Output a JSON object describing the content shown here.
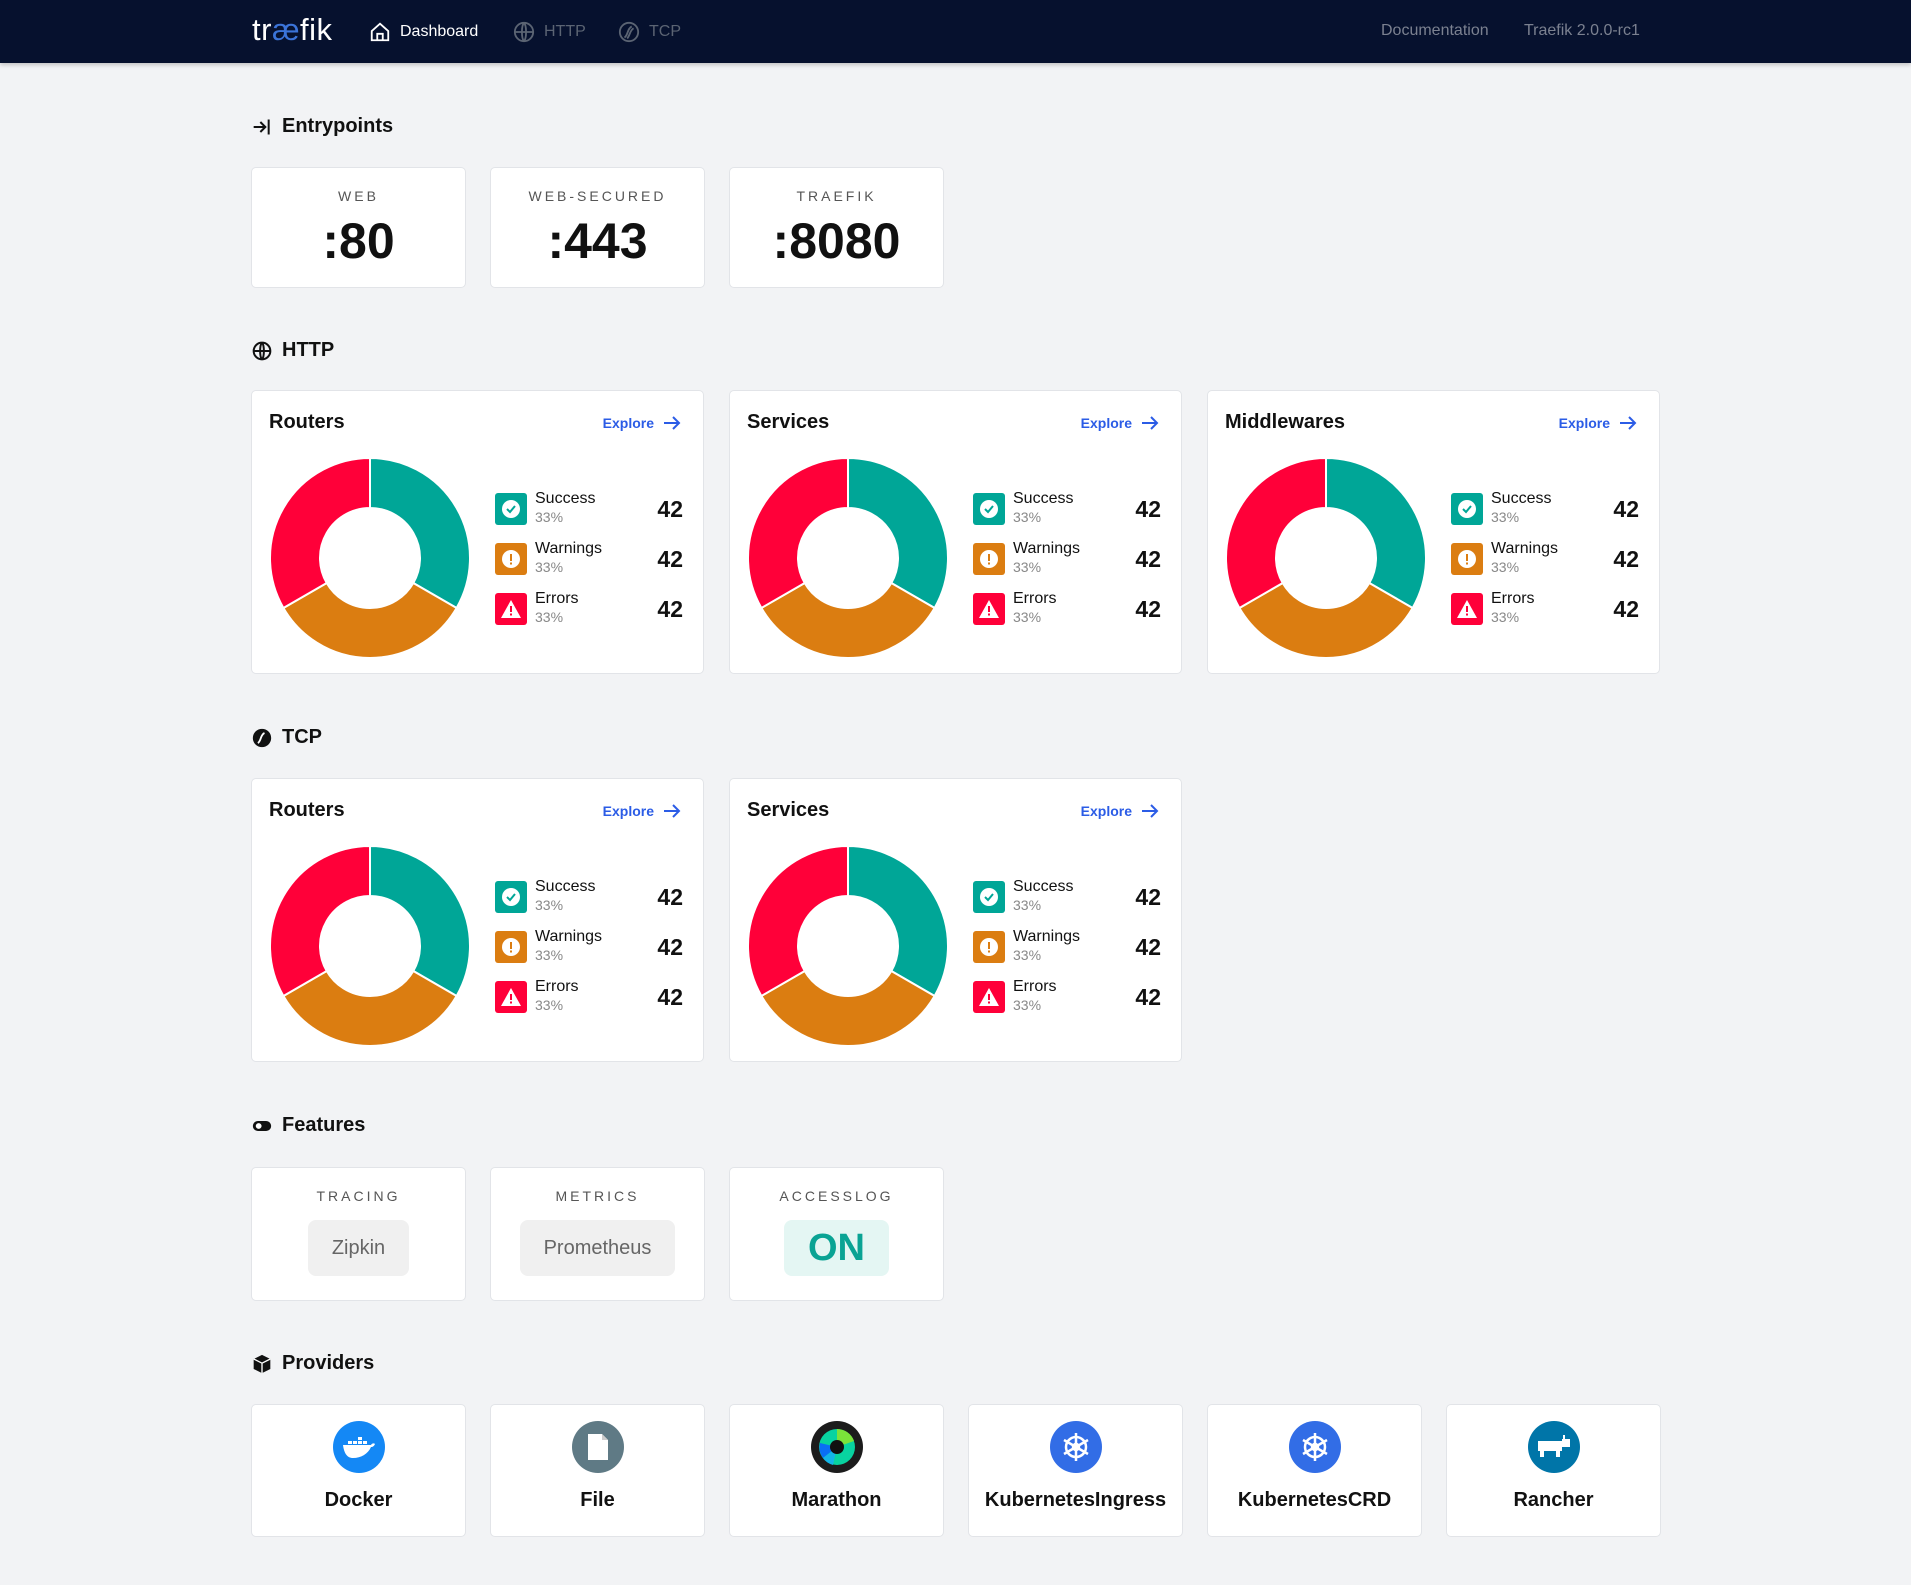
{
  "header": {
    "logo": "træfik",
    "logo_parts": [
      "tr",
      "æ",
      "fik"
    ],
    "nav": [
      {
        "label": "Dashboard",
        "icon": "home-icon",
        "active": true
      },
      {
        "label": "HTTP",
        "icon": "globe-icon",
        "active": false
      },
      {
        "label": "TCP",
        "icon": "tcp-icon",
        "active": false
      }
    ],
    "documentation": "Documentation",
    "version": "Traefik 2.0.0-rc1"
  },
  "entrypoints": {
    "title": "Entrypoints",
    "items": [
      {
        "name": "WEB",
        "port": ":80"
      },
      {
        "name": "WEB-SECURED",
        "port": ":443"
      },
      {
        "name": "TRAEFIK",
        "port": ":8080"
      }
    ]
  },
  "colors": {
    "success": "#00a697",
    "warnings": "#db7d11",
    "errors": "#ff0039",
    "link": "#2b5ce6",
    "header_bg": "#06112e"
  },
  "http": {
    "title": "HTTP",
    "cards": [
      {
        "title": "Routers",
        "explore": "Explore",
        "stats": [
          {
            "label": "Success",
            "pct": "33%",
            "value": "42"
          },
          {
            "label": "Warnings",
            "pct": "33%",
            "value": "42"
          },
          {
            "label": "Errors",
            "pct": "33%",
            "value": "42"
          }
        ]
      },
      {
        "title": "Services",
        "explore": "Explore",
        "stats": [
          {
            "label": "Success",
            "pct": "33%",
            "value": "42"
          },
          {
            "label": "Warnings",
            "pct": "33%",
            "value": "42"
          },
          {
            "label": "Errors",
            "pct": "33%",
            "value": "42"
          }
        ]
      },
      {
        "title": "Middlewares",
        "explore": "Explore",
        "stats": [
          {
            "label": "Success",
            "pct": "33%",
            "value": "42"
          },
          {
            "label": "Warnings",
            "pct": "33%",
            "value": "42"
          },
          {
            "label": "Errors",
            "pct": "33%",
            "value": "42"
          }
        ]
      }
    ]
  },
  "tcp": {
    "title": "TCP",
    "cards": [
      {
        "title": "Routers",
        "explore": "Explore",
        "stats": [
          {
            "label": "Success",
            "pct": "33%",
            "value": "42"
          },
          {
            "label": "Warnings",
            "pct": "33%",
            "value": "42"
          },
          {
            "label": "Errors",
            "pct": "33%",
            "value": "42"
          }
        ]
      },
      {
        "title": "Services",
        "explore": "Explore",
        "stats": [
          {
            "label": "Success",
            "pct": "33%",
            "value": "42"
          },
          {
            "label": "Warnings",
            "pct": "33%",
            "value": "42"
          },
          {
            "label": "Errors",
            "pct": "33%",
            "value": "42"
          }
        ]
      }
    ]
  },
  "features": {
    "title": "Features",
    "items": [
      {
        "name": "TRACING",
        "value": "Zipkin"
      },
      {
        "name": "METRICS",
        "value": "Prometheus"
      },
      {
        "name": "ACCESSLOG",
        "value": "ON"
      }
    ]
  },
  "providers": {
    "title": "Providers",
    "items": [
      {
        "name": "Docker",
        "icon": "docker-icon",
        "color": "#1488f5"
      },
      {
        "name": "File",
        "icon": "file-icon",
        "color": "#5f7a85"
      },
      {
        "name": "Marathon",
        "icon": "marathon-icon",
        "color": "#1c1c1c"
      },
      {
        "name": "KubernetesIngress",
        "icon": "kubernetes-icon",
        "color": "#326de6"
      },
      {
        "name": "KubernetesCRD",
        "icon": "kubernetes-icon",
        "color": "#326de6"
      },
      {
        "name": "Rancher",
        "icon": "rancher-icon",
        "color": "#0075a8"
      }
    ]
  }
}
